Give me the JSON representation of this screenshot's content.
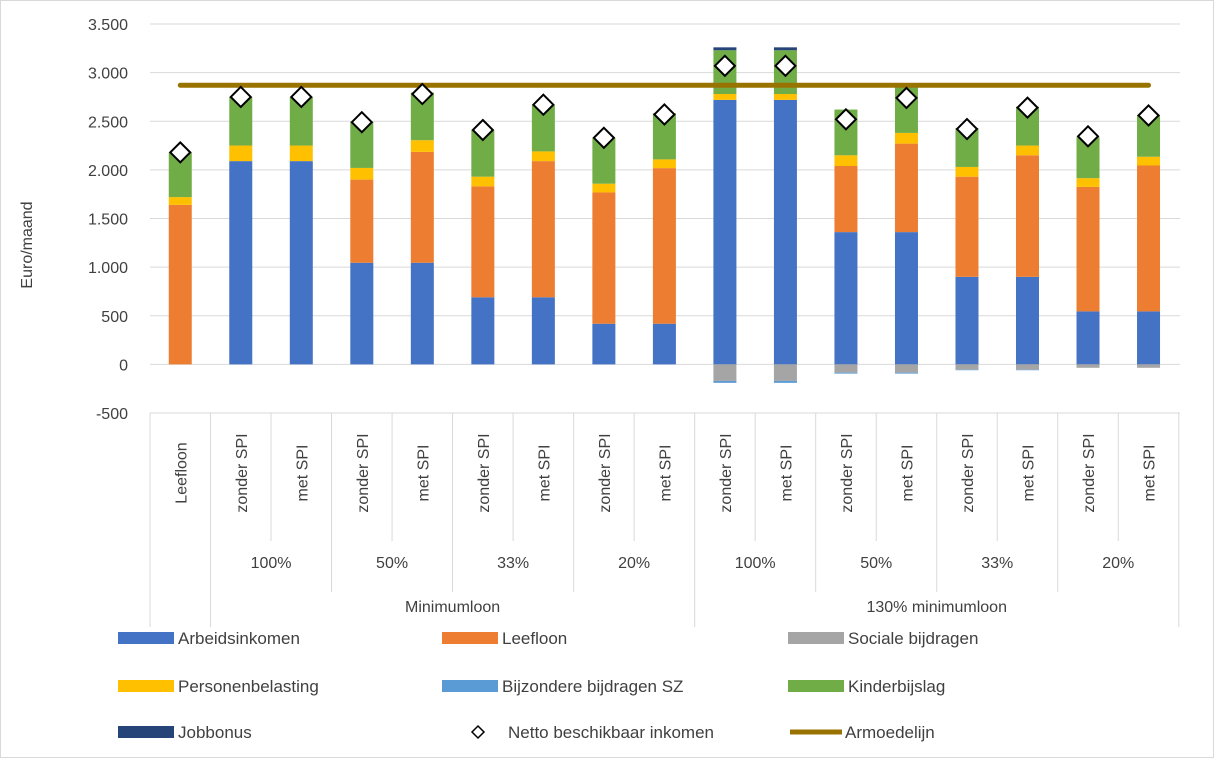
{
  "chart_data": {
    "type": "bar",
    "stacked": true,
    "ylabel": "Euro/maand",
    "ylim": [
      -500,
      3500
    ],
    "yticks": [
      -500,
      0,
      500,
      1000,
      1500,
      2000,
      2500,
      3000,
      3500
    ],
    "ytick_labels": [
      "-500",
      "0",
      "500",
      "1.000",
      "1.500",
      "2.000",
      "2.500",
      "3.000",
      "3.500"
    ],
    "grid": "horizontal",
    "legend_position": "bottom",
    "categories": [
      "Leefloon",
      "zonder SPI",
      "met SPI",
      "zonder SPI",
      "met SPI",
      "zonder SPI",
      "met SPI",
      "zonder SPI",
      "met SPI",
      "zonder SPI",
      "met SPI",
      "zonder SPI",
      "met SPI",
      "zonder SPI",
      "met SPI",
      "zonder SPI",
      "met SPI"
    ],
    "groups_level2": [
      {
        "label": "100%",
        "span": [
          1,
          2
        ]
      },
      {
        "label": "50%",
        "span": [
          3,
          4
        ]
      },
      {
        "label": "33%",
        "span": [
          5,
          6
        ]
      },
      {
        "label": "20%",
        "span": [
          7,
          8
        ]
      },
      {
        "label": "100%",
        "span": [
          9,
          10
        ]
      },
      {
        "label": "50%",
        "span": [
          11,
          12
        ]
      },
      {
        "label": "33%",
        "span": [
          13,
          14
        ]
      },
      {
        "label": "20%",
        "span": [
          15,
          16
        ]
      }
    ],
    "groups_level3": [
      {
        "label": "Minimumloon",
        "span": [
          1,
          8
        ]
      },
      {
        "label": "130% minimumloon",
        "span": [
          9,
          16
        ]
      }
    ],
    "series": [
      {
        "name": "Arbeidsinkomen",
        "color": "#4472C4",
        "values": [
          0,
          2090,
          2090,
          1045,
          1045,
          690,
          690,
          418,
          418,
          2720,
          2720,
          1360,
          1360,
          900,
          900,
          545,
          545
        ]
      },
      {
        "name": "Leefloon",
        "color": "#ED7D31",
        "values": [
          1640,
          0,
          0,
          855,
          1140,
          1140,
          1400,
          1350,
          1600,
          0,
          0,
          680,
          910,
          1030,
          1250,
          1280,
          1500
        ]
      },
      {
        "name": "Sociale bijdragen",
        "color": "#A5A5A5",
        "values": [
          0,
          0,
          0,
          0,
          0,
          0,
          0,
          0,
          0,
          -170,
          -170,
          -85,
          -85,
          -55,
          -55,
          -35,
          -35
        ]
      },
      {
        "name": "Personenbelasting",
        "color": "#FFC000",
        "values": [
          80,
          160,
          160,
          120,
          120,
          100,
          100,
          90,
          90,
          60,
          60,
          110,
          110,
          100,
          100,
          90,
          90
        ]
      },
      {
        "name": "Bijzondere bijdragen SZ",
        "color": "#5B9BD5",
        "values": [
          0,
          0,
          0,
          0,
          0,
          0,
          0,
          0,
          0,
          -20,
          -20,
          -10,
          -10,
          -5,
          -5,
          0,
          0
        ]
      },
      {
        "name": "Kinderbijslag",
        "color": "#70AD47",
        "values": [
          460,
          500,
          500,
          475,
          490,
          480,
          480,
          470,
          475,
          450,
          450,
          470,
          470,
          400,
          400,
          420,
          430
        ]
      },
      {
        "name": "Jobbonus",
        "color": "#264478",
        "values": [
          0,
          0,
          0,
          0,
          0,
          0,
          0,
          0,
          0,
          30,
          30,
          0,
          0,
          0,
          0,
          0,
          0
        ]
      }
    ],
    "netto": {
      "name": "Netto beschikbaar inkomen",
      "values": [
        2180,
        2750,
        2750,
        2490,
        2780,
        2410,
        2670,
        2330,
        2570,
        3070,
        3070,
        2520,
        2740,
        2420,
        2640,
        2345,
        2560
      ]
    },
    "armoedelijn": {
      "name": "Armoedelijn",
      "color": "#997300",
      "value": 2870
    }
  }
}
